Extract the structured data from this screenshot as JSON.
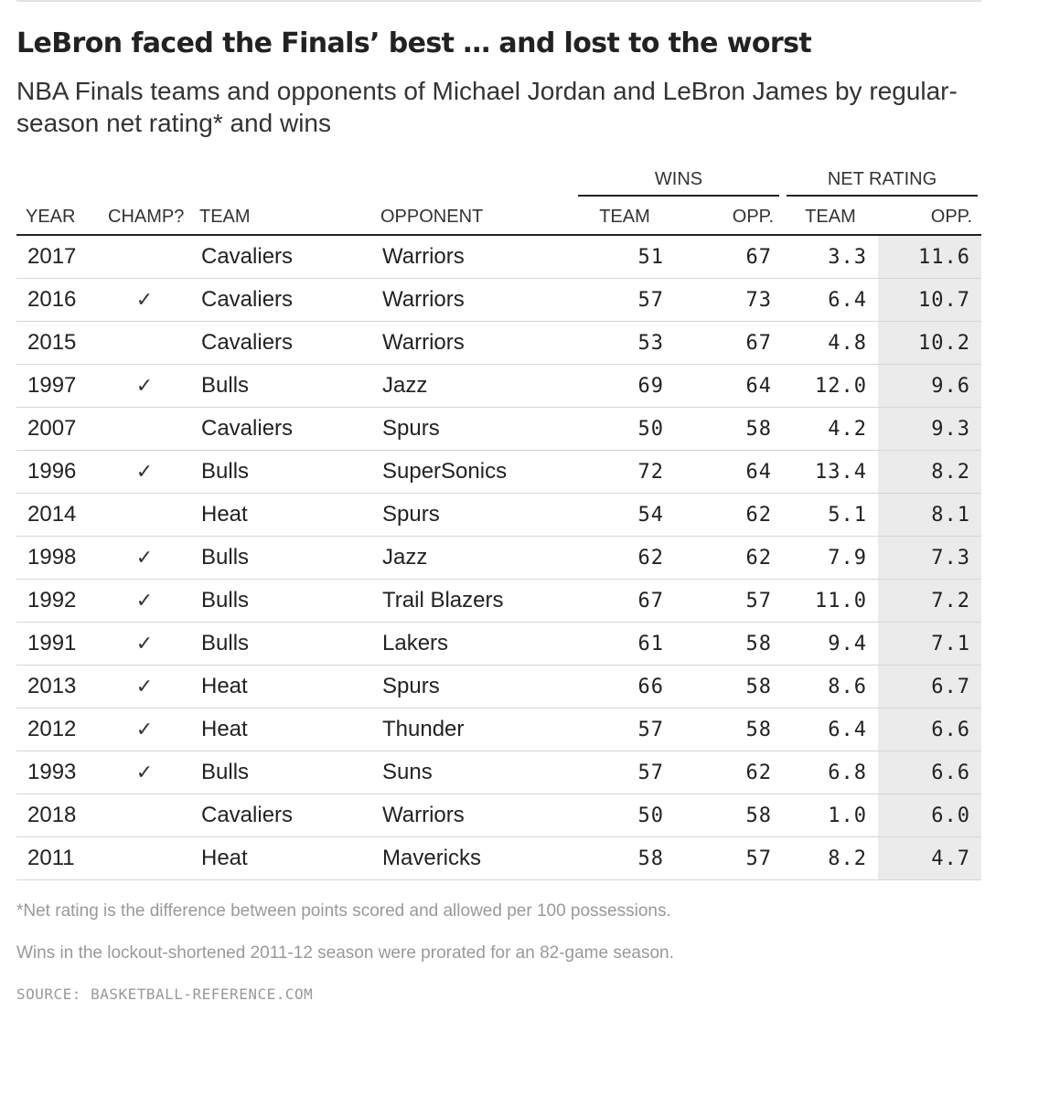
{
  "title": "LeBron faced the Finals’ best … and lost to the worst",
  "subtitle": "NBA Finals teams and opponents of Michael Jordan and LeBron James by regular-season net rating* and wins",
  "colors": {
    "highlight_column_bg": "#ebebeb",
    "rule": "#222222",
    "row_divider": "#d6d6d6",
    "footnote_text": "#999999"
  },
  "chart_data": {
    "type": "table",
    "column_groups": [
      {
        "label": "WINS",
        "columns": [
          "TEAM",
          "OPP."
        ]
      },
      {
        "label": "NET RATING",
        "columns": [
          "TEAM",
          "OPP."
        ]
      }
    ],
    "headers": {
      "year": "YEAR",
      "champ": "CHAMP?",
      "team": "TEAM",
      "opponent": "OPPONENT",
      "wins_team": "TEAM",
      "wins_opp": "OPP.",
      "net_team": "TEAM",
      "net_opp": "OPP."
    },
    "check_symbol": "✓",
    "rows": [
      {
        "year": "2017",
        "champ": false,
        "team": "Cavaliers",
        "opponent": "Warriors",
        "wins_team": "51",
        "wins_opp": "67",
        "net_team": "3.3",
        "net_opp": "11.6"
      },
      {
        "year": "2016",
        "champ": true,
        "team": "Cavaliers",
        "opponent": "Warriors",
        "wins_team": "57",
        "wins_opp": "73",
        "net_team": "6.4",
        "net_opp": "10.7"
      },
      {
        "year": "2015",
        "champ": false,
        "team": "Cavaliers",
        "opponent": "Warriors",
        "wins_team": "53",
        "wins_opp": "67",
        "net_team": "4.8",
        "net_opp": "10.2"
      },
      {
        "year": "1997",
        "champ": true,
        "team": "Bulls",
        "opponent": "Jazz",
        "wins_team": "69",
        "wins_opp": "64",
        "net_team": "12.0",
        "net_opp": "9.6"
      },
      {
        "year": "2007",
        "champ": false,
        "team": "Cavaliers",
        "opponent": "Spurs",
        "wins_team": "50",
        "wins_opp": "58",
        "net_team": "4.2",
        "net_opp": "9.3"
      },
      {
        "year": "1996",
        "champ": true,
        "team": "Bulls",
        "opponent": "SuperSonics",
        "wins_team": "72",
        "wins_opp": "64",
        "net_team": "13.4",
        "net_opp": "8.2"
      },
      {
        "year": "2014",
        "champ": false,
        "team": "Heat",
        "opponent": "Spurs",
        "wins_team": "54",
        "wins_opp": "62",
        "net_team": "5.1",
        "net_opp": "8.1"
      },
      {
        "year": "1998",
        "champ": true,
        "team": "Bulls",
        "opponent": "Jazz",
        "wins_team": "62",
        "wins_opp": "62",
        "net_team": "7.9",
        "net_opp": "7.3"
      },
      {
        "year": "1992",
        "champ": true,
        "team": "Bulls",
        "opponent": "Trail Blazers",
        "wins_team": "67",
        "wins_opp": "57",
        "net_team": "11.0",
        "net_opp": "7.2"
      },
      {
        "year": "1991",
        "champ": true,
        "team": "Bulls",
        "opponent": "Lakers",
        "wins_team": "61",
        "wins_opp": "58",
        "net_team": "9.4",
        "net_opp": "7.1"
      },
      {
        "year": "2013",
        "champ": true,
        "team": "Heat",
        "opponent": "Spurs",
        "wins_team": "66",
        "wins_opp": "58",
        "net_team": "8.6",
        "net_opp": "6.7"
      },
      {
        "year": "2012",
        "champ": true,
        "team": "Heat",
        "opponent": "Thunder",
        "wins_team": "57",
        "wins_opp": "58",
        "net_team": "6.4",
        "net_opp": "6.6"
      },
      {
        "year": "1993",
        "champ": true,
        "team": "Bulls",
        "opponent": "Suns",
        "wins_team": "57",
        "wins_opp": "62",
        "net_team": "6.8",
        "net_opp": "6.6"
      },
      {
        "year": "2018",
        "champ": false,
        "team": "Cavaliers",
        "opponent": "Warriors",
        "wins_team": "50",
        "wins_opp": "58",
        "net_team": "1.0",
        "net_opp": "6.0"
      },
      {
        "year": "2011",
        "champ": false,
        "team": "Heat",
        "opponent": "Mavericks",
        "wins_team": "58",
        "wins_opp": "57",
        "net_team": "8.2",
        "net_opp": "4.7"
      }
    ]
  },
  "footnotes": [
    "*Net rating is the difference between points scored and allowed per 100 possessions.",
    "Wins in the lockout-shortened 2011-12 season were prorated for an 82-game season."
  ],
  "source": "SOURCE: BASKETBALL-REFERENCE.COM"
}
